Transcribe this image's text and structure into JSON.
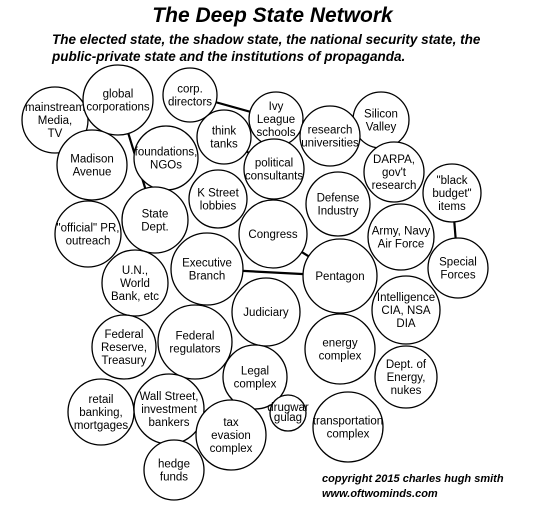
{
  "title": "The Deep State Network",
  "subtitle": "The elected state, the shadow state, the national security state, the public-private state and the institutions of propaganda.",
  "copyright": [
    "copyright 2015 charles hugh smith",
    "www.oftwominds.com"
  ],
  "nodes": [
    {
      "id": "mainstream",
      "lines": [
        "mainstream",
        "Media,",
        "TV"
      ]
    },
    {
      "id": "global-corp",
      "lines": [
        "global",
        "corporations"
      ]
    },
    {
      "id": "corp-directors",
      "lines": [
        "corp.",
        "directors"
      ]
    },
    {
      "id": "ivy-league",
      "lines": [
        "Ivy",
        "League",
        "schools"
      ]
    },
    {
      "id": "silicon-valley",
      "lines": [
        "Silicon",
        "Valley"
      ]
    },
    {
      "id": "madison",
      "lines": [
        "Madison",
        "Avenue"
      ]
    },
    {
      "id": "foundations",
      "lines": [
        "foundations,",
        "NGOs"
      ]
    },
    {
      "id": "think-tanks",
      "lines": [
        "think",
        "tanks"
      ]
    },
    {
      "id": "research-univ",
      "lines": [
        "research",
        "universities"
      ]
    },
    {
      "id": "political-consultants",
      "lines": [
        "political",
        "consultants"
      ]
    },
    {
      "id": "darpa",
      "lines": [
        "DARPA,",
        "gov't",
        "research"
      ]
    },
    {
      "id": "black-budget",
      "lines": [
        "\"black",
        "budget\"",
        "items"
      ]
    },
    {
      "id": "k-street",
      "lines": [
        "K Street",
        "lobbies"
      ]
    },
    {
      "id": "defense-industry",
      "lines": [
        "Defense",
        "Industry"
      ]
    },
    {
      "id": "official-pr",
      "lines": [
        "\"official\" PR,",
        "outreach"
      ]
    },
    {
      "id": "state-dept",
      "lines": [
        "State",
        "Dept."
      ]
    },
    {
      "id": "congress",
      "lines": [
        "Congress"
      ]
    },
    {
      "id": "army-navy",
      "lines": [
        "Army, Navy",
        "Air Force"
      ]
    },
    {
      "id": "special-forces",
      "lines": [
        "Special",
        "Forces"
      ]
    },
    {
      "id": "executive",
      "lines": [
        "Executive",
        "Branch"
      ]
    },
    {
      "id": "un-world-bank",
      "lines": [
        "U.N.,",
        "World",
        "Bank, etc"
      ]
    },
    {
      "id": "pentagon",
      "lines": [
        "Pentagon"
      ]
    },
    {
      "id": "judiciary",
      "lines": [
        "Judiciary"
      ]
    },
    {
      "id": "intelligence",
      "lines": [
        "Intelligence",
        "CIA, NSA",
        "DIA"
      ]
    },
    {
      "id": "federal-regulators",
      "lines": [
        "Federal",
        "regulators"
      ]
    },
    {
      "id": "federal-reserve",
      "lines": [
        "Federal",
        "Reserve,",
        "Treasury"
      ]
    },
    {
      "id": "energy-complex",
      "lines": [
        "energy",
        "complex"
      ]
    },
    {
      "id": "dept-energy",
      "lines": [
        "Dept. of",
        "Energy,",
        "nukes"
      ]
    },
    {
      "id": "legal-complex",
      "lines": [
        "Legal",
        "complex"
      ]
    },
    {
      "id": "retail-banking",
      "lines": [
        "retail",
        "banking,",
        "mortgages"
      ]
    },
    {
      "id": "wall-street",
      "lines": [
        "Wall Street,",
        "investment",
        "bankers"
      ]
    },
    {
      "id": "drugwar-gulag",
      "lines": [
        "drugwar",
        "gulag"
      ]
    },
    {
      "id": "tax-evasion",
      "lines": [
        "tax",
        "evasion",
        "complex"
      ]
    },
    {
      "id": "transportation",
      "lines": [
        "transportation",
        "complex"
      ]
    },
    {
      "id": "hedge-funds",
      "lines": [
        "hedge",
        "funds"
      ]
    }
  ]
}
